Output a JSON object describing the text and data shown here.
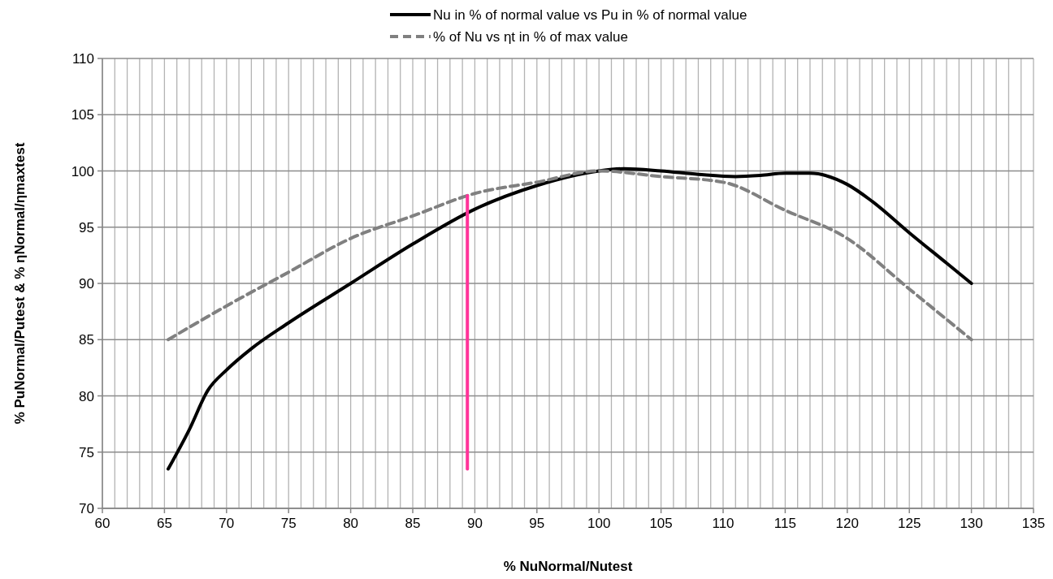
{
  "chart_data": {
    "type": "line",
    "xlabel": "% NuNormal/Nutest",
    "ylabel": "% PuNormal/Putest & %  ηNormal/ηmaxtest",
    "xlim": [
      60,
      135
    ],
    "xticks": [
      60,
      {
        "value": 61,
        "label": null
      },
      {
        "value": 62,
        "label": null
      },
      {
        "value": 63,
        "label": null
      },
      {
        "value": 64,
        "label": null
      },
      65,
      {
        "value": 66,
        "label": null
      },
      {
        "value": 67,
        "label": null
      },
      {
        "value": 68,
        "label": null
      },
      {
        "value": 69,
        "label": null
      },
      70,
      {
        "value": 71,
        "label": null
      },
      {
        "value": 72,
        "label": null
      },
      {
        "value": 73,
        "label": null
      },
      {
        "value": 74,
        "label": null
      },
      75,
      {
        "value": 76,
        "label": null
      },
      {
        "value": 77,
        "label": null
      },
      {
        "value": 78,
        "label": null
      },
      {
        "value": 79,
        "label": null
      },
      80,
      {
        "value": 81,
        "label": null
      },
      {
        "value": 82,
        "label": null
      },
      {
        "value": 83,
        "label": null
      },
      {
        "value": 84,
        "label": null
      },
      85,
      {
        "value": 86,
        "label": null
      },
      {
        "value": 87,
        "label": null
      },
      {
        "value": 88,
        "label": null
      },
      {
        "value": 89,
        "label": null
      },
      90,
      {
        "value": 91,
        "label": null
      },
      {
        "value": 92,
        "label": null
      },
      {
        "value": 93,
        "label": null
      },
      {
        "value": 94,
        "label": null
      },
      95,
      {
        "value": 96,
        "label": null
      },
      {
        "value": 97,
        "label": null
      },
      {
        "value": 98,
        "label": null
      },
      {
        "value": 99,
        "label": null
      },
      100,
      {
        "value": 101,
        "label": null
      },
      {
        "value": 102,
        "label": null
      },
      {
        "value": 103,
        "label": null
      },
      {
        "value": 104,
        "label": null
      },
      105,
      {
        "value": 106,
        "label": null
      },
      {
        "value": 107,
        "label": null
      },
      {
        "value": 108,
        "label": null
      },
      {
        "value": 109,
        "label": null
      },
      110,
      {
        "value": 111,
        "label": null
      },
      {
        "value": 112,
        "label": null
      },
      {
        "value": 113,
        "label": null
      },
      {
        "value": 114,
        "label": null
      },
      115,
      {
        "value": 116,
        "label": null
      },
      {
        "value": 117,
        "label": null
      },
      {
        "value": 118,
        "label": null
      },
      {
        "value": 119,
        "label": null
      },
      120,
      {
        "value": 121,
        "label": null
      },
      {
        "value": 122,
        "label": null
      },
      {
        "value": 123,
        "label": null
      },
      {
        "value": 124,
        "label": null
      },
      125,
      {
        "value": 126,
        "label": null
      },
      {
        "value": 127,
        "label": null
      },
      {
        "value": 128,
        "label": null
      },
      {
        "value": 129,
        "label": null
      },
      130,
      {
        "value": 131,
        "label": null
      },
      {
        "value": 132,
        "label": null
      },
      {
        "value": 133,
        "label": null
      },
      {
        "value": 134,
        "label": null
      },
      135
    ],
    "ylim": [
      70,
      110
    ],
    "yticks": [
      70,
      75,
      80,
      85,
      90,
      95,
      100,
      105,
      110
    ],
    "grid": true,
    "legend": "top",
    "marker": "none",
    "series": [
      {
        "name": "Nu in % of normal value vs Pu  in % of normal value",
        "color": "#000000",
        "line_style": "solid",
        "x": [
          65.3,
          67,
          68.5,
          70,
          72,
          75,
          80,
          85,
          90,
          95,
          100,
          102,
          105,
          108,
          111,
          113,
          115,
          117,
          120,
          122,
          125,
          128,
          130
        ],
        "values": [
          73.5,
          77,
          80.5,
          82.3,
          84.2,
          86.5,
          90,
          93.5,
          96.6,
          98.7,
          100,
          100.2,
          100,
          99.7,
          99.5,
          99.6,
          99.8,
          99.8,
          98.8,
          97.3,
          94.5,
          91.8,
          90
        ]
      },
      {
        "name": "% of Nu vs ηt in % of max value",
        "color": "#808080",
        "line_style": "dashed",
        "x": [
          65.3,
          70,
          75,
          80,
          85,
          90,
          95,
          100,
          105,
          110,
          115,
          120,
          125,
          130
        ],
        "values": [
          85,
          88,
          91,
          94,
          96,
          98,
          99,
          100,
          99.5,
          99,
          96.5,
          94,
          89.5,
          85
        ]
      },
      {
        "color": "#ff3399",
        "line_style": "solid",
        "x": [
          89.4,
          89.4
        ],
        "values": [
          73.5,
          97.8
        ]
      }
    ]
  }
}
